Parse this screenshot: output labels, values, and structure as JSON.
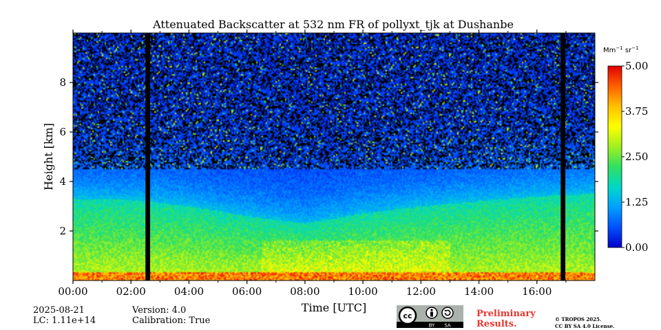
{
  "chart_data": {
    "type": "heatmap",
    "title": "Attenuated Backscatter at 532 nm FR of pollyxt_tjk at Dushanbe",
    "xlabel": "Time [UTC]",
    "ylabel": "Height [km]",
    "xlim": [
      0,
      18
    ],
    "ylim": [
      0,
      10
    ],
    "x_ticks": [
      {
        "value": 0,
        "label": "00:00"
      },
      {
        "value": 2,
        "label": "02:00"
      },
      {
        "value": 4,
        "label": "04:00"
      },
      {
        "value": 6,
        "label": "06:00"
      },
      {
        "value": 8,
        "label": "08:00"
      },
      {
        "value": 10,
        "label": "10:00"
      },
      {
        "value": 12,
        "label": "12:00"
      },
      {
        "value": 14,
        "label": "14:00"
      },
      {
        "value": 16,
        "label": "16:00"
      }
    ],
    "y_ticks": [
      {
        "value": 2,
        "label": "2"
      },
      {
        "value": 4,
        "label": "4"
      },
      {
        "value": 6,
        "label": "6"
      },
      {
        "value": 8,
        "label": "8"
      }
    ],
    "colorbar": {
      "unit": "Mm",
      "unit_sup1": "−1",
      "unit_mid": " sr",
      "unit_sup2": "−1",
      "min": 0.0,
      "max": 5.0,
      "ticks": [
        {
          "value": 0.0,
          "label": "0.00"
        },
        {
          "value": 1.25,
          "label": "1.25"
        },
        {
          "value": 2.5,
          "label": "2.50"
        },
        {
          "value": 3.75,
          "label": "3.75"
        },
        {
          "value": 5.0,
          "label": "5.00"
        }
      ],
      "colors": [
        "#0000c8",
        "#0050ff",
        "#00a0ff",
        "#00d8c8",
        "#30e060",
        "#a0f020",
        "#ffff00",
        "#ffc000",
        "#ff6000",
        "#e00000"
      ]
    },
    "data_gaps": [
      {
        "start": 2.5,
        "end": 2.66
      },
      {
        "start": 16.82,
        "end": 16.98
      }
    ],
    "aerosol_layer_top": [
      {
        "time": 0,
        "height": 3.3
      },
      {
        "time": 2,
        "height": 3.25
      },
      {
        "time": 4,
        "height": 3.0
      },
      {
        "time": 6,
        "height": 2.6
      },
      {
        "time": 8,
        "height": 2.3
      },
      {
        "time": 10,
        "height": 2.7
      },
      {
        "time": 12,
        "height": 3.0
      },
      {
        "time": 14,
        "height": 3.2
      },
      {
        "time": 16,
        "height": 3.4
      },
      {
        "time": 18,
        "height": 3.5
      }
    ],
    "description_values": {
      "near_surface_max": 4.5,
      "boundary_layer_typical": 2.6,
      "free_troposphere_typical": 0.4
    }
  },
  "meta": {
    "date": "2025-08-21",
    "lc": "LC: 1.11e+14",
    "version": "Version: 4.0",
    "calibration": "Calibration: True"
  },
  "footer": {
    "preliminary_line1": "Preliminary",
    "preliminary_line2": "Results.",
    "copyright_line1": "© TROPOS 2025.",
    "copyright_line2": "CC BY SA 4.0 License.",
    "cc_badge": {
      "cc": "cc",
      "by": "BY",
      "sa": "SA"
    }
  }
}
